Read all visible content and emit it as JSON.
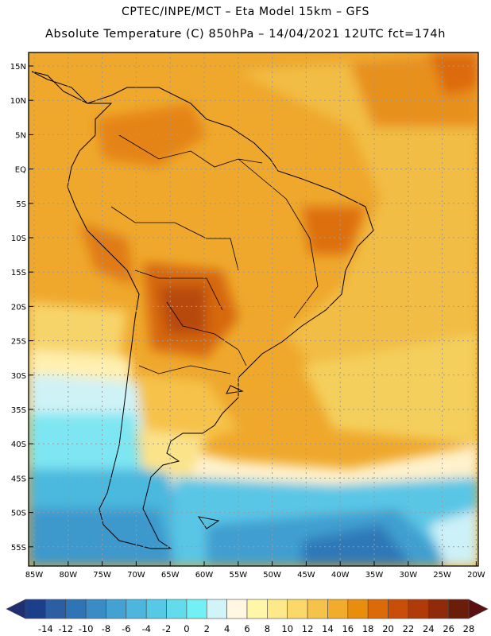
{
  "header": {
    "title_line1": "CPTEC/INPE/MCT –  Eta Model 15km – GFS",
    "title_line2": "Absolute Temperature (C) 850hPa – 14/04/2021 12UTC fct=174h"
  },
  "map": {
    "lat_labels": [
      "15N",
      "10N",
      "5N",
      "EQ",
      "5S",
      "10S",
      "15S",
      "20S",
      "25S",
      "30S",
      "35S",
      "40S",
      "45S",
      "50S",
      "55S"
    ],
    "lon_labels": [
      "85W",
      "80W",
      "75W",
      "70W",
      "65W",
      "60W",
      "55W",
      "50W",
      "45W",
      "40W",
      "35W",
      "30W",
      "25W",
      "20W"
    ],
    "grid": "dotted"
  },
  "colorbar": {
    "tick_labels": [
      "-14",
      "-12",
      "-10",
      "-8",
      "-6",
      "-4",
      "-2",
      "0",
      "2",
      "4",
      "6",
      "8",
      "10",
      "12",
      "14",
      "16",
      "18",
      "20",
      "22",
      "24",
      "26",
      "28"
    ],
    "colors": [
      "#1c3f8c",
      "#2b5ea3",
      "#2f74b4",
      "#3a8cc6",
      "#44a2d3",
      "#4cb6de",
      "#56c9e6",
      "#62dcec",
      "#72f0f4",
      "#d0f4f8",
      "#fff7e0",
      "#fff6a8",
      "#fde98a",
      "#fbd868",
      "#f6c34a",
      "#f0ac2a",
      "#e98e0c",
      "#dd6a08",
      "#c94e08",
      "#b03a08",
      "#8f2a0a",
      "#6a1e0a"
    ],
    "end_left_color": "#1f2f70",
    "end_right_color": "#5a1010"
  }
}
